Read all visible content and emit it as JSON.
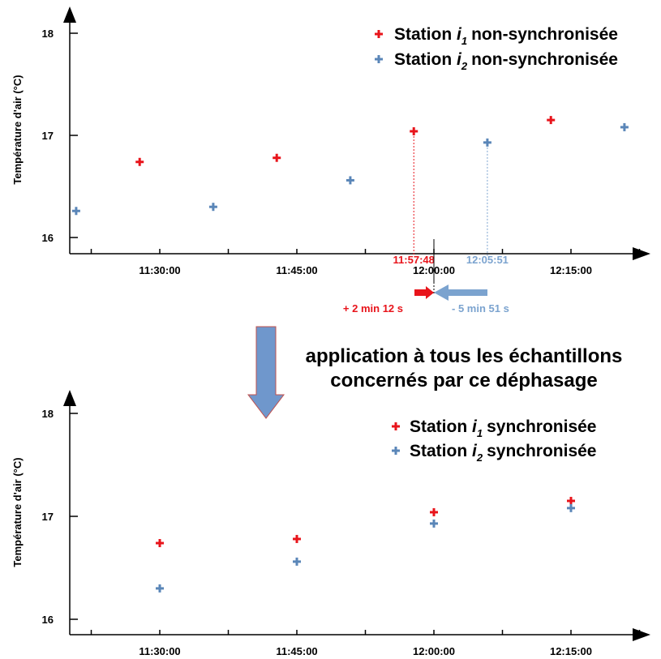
{
  "colors": {
    "station_i1": "#e8141b",
    "station_i2": "#5a86b8",
    "station_i2_light": "#7ba3cf",
    "axis": "#000000",
    "arrow_fill": "#6f97cc",
    "arrow_stroke": "#c0504d"
  },
  "chart_data": [
    {
      "type": "scatter",
      "title": "",
      "xlabel": "",
      "ylabel": "Température d'air (°C)",
      "x_ticks": [
        "11:30:00",
        "11:45:00",
        "12:00:00",
        "12:15:00"
      ],
      "y_ticks": [
        "16",
        "17",
        "18"
      ],
      "ylim": [
        15.9,
        18.2
      ],
      "series": [
        {
          "name": "Station i1 non-synchronisée",
          "legend_main": "Station",
          "legend_sub": "1",
          "legend_rest": "non-synchronisée",
          "color_key": "station_i1",
          "points": [
            {
              "x": "11:27:48",
              "y": 16.74
            },
            {
              "x": "11:42:48",
              "y": 16.78
            },
            {
              "x": "11:57:48",
              "y": 17.04
            },
            {
              "x": "12:12:48",
              "y": 17.15
            }
          ]
        },
        {
          "name": "Station i2 non-synchronisée",
          "legend_main": "Station",
          "legend_sub": "2",
          "legend_rest": "non-synchronisée",
          "color_key": "station_i2",
          "points": [
            {
              "x": "11:20:51",
              "y": 16.26
            },
            {
              "x": "11:35:51",
              "y": 16.3
            },
            {
              "x": "11:50:51",
              "y": 16.56
            },
            {
              "x": "12:05:51",
              "y": 16.93
            },
            {
              "x": "12:20:51",
              "y": 17.08
            }
          ]
        }
      ],
      "annotations": [
        {
          "time": "11:57:48",
          "label": "11:57:48",
          "color_key": "station_i1",
          "y": 17.04
        },
        {
          "time": "12:05:51",
          "label": "12:05:51",
          "color_key": "station_i2_light",
          "y": 16.93
        }
      ],
      "shift_labels": {
        "red": "+ 2 min 12 s",
        "blue": "- 5 min 51 s"
      }
    },
    {
      "type": "scatter",
      "title": "",
      "xlabel": "",
      "ylabel": "Température d'air (°C)",
      "x_ticks": [
        "11:30:00",
        "11:45:00",
        "12:00:00",
        "12:15:00"
      ],
      "y_ticks": [
        "16",
        "17",
        "18"
      ],
      "ylim": [
        15.9,
        18.2
      ],
      "series": [
        {
          "name": "Station i1 synchronisée",
          "legend_main": "Station",
          "legend_sub": "1",
          "legend_rest": "synchronisée",
          "color_key": "station_i1",
          "points": [
            {
              "x": "11:30:00",
              "y": 16.74
            },
            {
              "x": "11:45:00",
              "y": 16.78
            },
            {
              "x": "12:00:00",
              "y": 17.04
            },
            {
              "x": "12:15:00",
              "y": 17.15
            }
          ]
        },
        {
          "name": "Station i2 synchronisée",
          "legend_main": "Station",
          "legend_sub": "2",
          "legend_rest": "synchronisée",
          "color_key": "station_i2",
          "points": [
            {
              "x": "11:30:00",
              "y": 16.3
            },
            {
              "x": "11:45:00",
              "y": 16.56
            },
            {
              "x": "12:00:00",
              "y": 16.93
            },
            {
              "x": "12:15:00",
              "y": 17.08
            }
          ]
        }
      ]
    }
  ],
  "middle_text": [
    "application à tous les échantillons",
    "concernés par ce déphasage"
  ]
}
